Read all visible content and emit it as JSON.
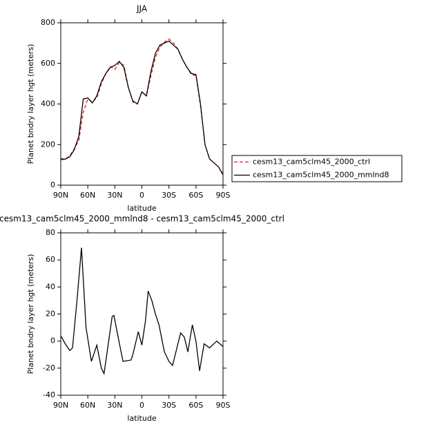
{
  "chart_data": [
    {
      "type": "line",
      "title": "JJA",
      "ylabel": "Planet bndry layer hgt (meters)",
      "xlabel": "latitude",
      "x": [
        90,
        85,
        80,
        75,
        70,
        65,
        60,
        55,
        50,
        45,
        40,
        35,
        30,
        25,
        20,
        15,
        10,
        5,
        0,
        -5,
        -10,
        -15,
        -20,
        -25,
        -30,
        -35,
        -40,
        -45,
        -50,
        -55,
        -60,
        -65,
        -70,
        -75,
        -80,
        -85,
        -90
      ],
      "series": [
        {
          "name": "cesm13_cam5clm45_2000_ctrl",
          "color": "#e41a1c",
          "dashed": true,
          "values": [
            125,
            128,
            145,
            180,
            220,
            360,
            425,
            410,
            430,
            500,
            550,
            585,
            570,
            605,
            590,
            485,
            410,
            400,
            460,
            440,
            540,
            630,
            680,
            705,
            720,
            700,
            670,
            620,
            580,
            545,
            540,
            390,
            200,
            130,
            110,
            90,
            55
          ]
        },
        {
          "name": "cesm13_cam5clm45_2000_mmlnd8",
          "color": "#000000",
          "dashed": false,
          "values": [
            130,
            128,
            140,
            175,
            240,
            425,
            430,
            405,
            440,
            510,
            550,
            580,
            590,
            610,
            580,
            480,
            415,
            400,
            460,
            440,
            560,
            650,
            690,
            700,
            710,
            690,
            670,
            620,
            580,
            550,
            545,
            400,
            200,
            130,
            110,
            90,
            50
          ]
        }
      ],
      "xlim": [
        90,
        -90
      ],
      "xticks": [
        {
          "value": 90,
          "label": "90N"
        },
        {
          "value": 60,
          "label": "60N"
        },
        {
          "value": 30,
          "label": "30N"
        },
        0,
        {
          "value": -30,
          "label": "30S"
        },
        {
          "value": -60,
          "label": "60S"
        },
        {
          "value": -90,
          "label": "90S"
        }
      ],
      "ylim": [
        0,
        800
      ],
      "yticks": [
        0,
        200,
        400,
        600,
        800
      ],
      "legend": "right"
    },
    {
      "type": "line",
      "title": "cesm13_cam5clm45_2000_mmlnd8 - cesm13_cam5clm45_2000_ctrl",
      "ylabel": "Planet bndry layer hgt (meters)",
      "xlabel": "latitude",
      "x": [
        90,
        85,
        80,
        77,
        72,
        67,
        62,
        56,
        50,
        45,
        42,
        39,
        33,
        31,
        27,
        21,
        12,
        10,
        4,
        0,
        -4,
        -7,
        -11,
        -15,
        -19,
        -25,
        -30,
        -34,
        -43,
        -47,
        -51,
        -56,
        -60,
        -64,
        -69,
        -75,
        -83,
        -90
      ],
      "series": [
        {
          "color": "#000000",
          "dashed": false,
          "values": [
            4,
            -2,
            -7,
            -5,
            30,
            69,
            10,
            -15,
            -3,
            -20,
            -24,
            -10,
            18,
            19,
            5,
            -15,
            -14,
            -10,
            7,
            -3,
            15,
            37,
            30,
            20,
            12,
            -8,
            -15,
            -18,
            6,
            3,
            -8,
            12,
            0,
            -22,
            -2,
            -5,
            0,
            -4
          ]
        }
      ],
      "xlim": [
        90,
        -90
      ],
      "xticks": [
        {
          "value": 90,
          "label": "90N"
        },
        {
          "value": 60,
          "label": "60N"
        },
        {
          "value": 30,
          "label": "30N"
        },
        0,
        {
          "value": -30,
          "label": "30S"
        },
        {
          "value": -60,
          "label": "60S"
        },
        {
          "value": -90,
          "label": "90S"
        }
      ],
      "ylim": [
        -40,
        80
      ],
      "yticks": [
        -40,
        -20,
        0,
        20,
        40,
        60,
        80
      ]
    }
  ]
}
